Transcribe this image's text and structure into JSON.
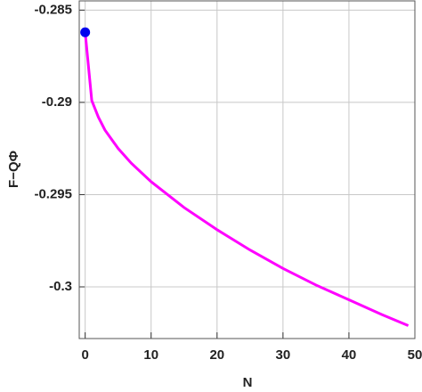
{
  "chart_data": {
    "type": "line",
    "xlabel": "N",
    "ylabel": "F−QΦ",
    "series": [
      {
        "color": "#ff00ff",
        "x": [
          0,
          1,
          2,
          3,
          5,
          7,
          10,
          15,
          20,
          25,
          30,
          35,
          40,
          45,
          49
        ],
        "values": [
          -0.2862,
          -0.2899,
          -0.2908,
          -0.2915,
          -0.2925,
          -0.2933,
          -0.2943,
          -0.2957,
          -0.2969,
          -0.298,
          -0.299,
          -0.2999,
          -0.3007,
          -0.3015,
          -0.3021
        ]
      }
    ],
    "points": {
      "color": "#0000ee",
      "x": [
        0
      ],
      "values": [
        -0.2862
      ]
    },
    "xlim": [
      -0.9,
      50
    ],
    "ylim": [
      -0.3028,
      -0.2845
    ],
    "xticks": [
      0,
      10,
      20,
      30,
      40,
      50
    ],
    "yticks": [
      -0.285,
      -0.29,
      -0.295,
      -0.3
    ],
    "grid": true
  }
}
